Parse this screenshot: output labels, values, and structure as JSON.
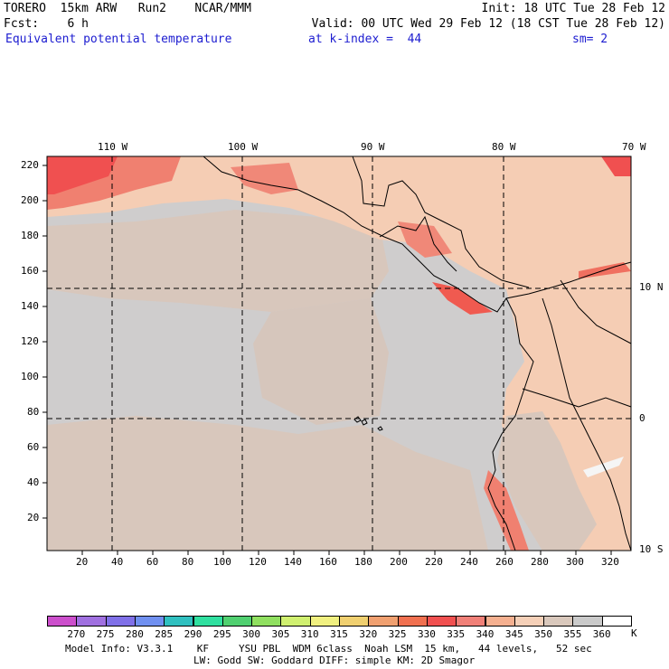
{
  "header": {
    "line1_left": "TORERO  15km ARW   Run2    NCAR/MMM",
    "line1_right": "Init: 18 UTC Tue 28 Feb 12",
    "line2_left": "Fcst:    6 h",
    "line2_right": "Valid: 00 UTC Wed 29 Feb 12 (18 CST Tue 28 Feb 12)",
    "field_name": "Equivalent potential temperature",
    "level": "at k-index =  44",
    "smoothing": "sm= 2"
  },
  "map": {
    "top_lon_labels": [
      "110 W",
      "100 W",
      "90 W",
      "80 W",
      "70 W"
    ],
    "right_lat_labels": [
      "10 N",
      "0",
      "10 S"
    ],
    "left_ticks": [
      "20",
      "40",
      "60",
      "80",
      "100",
      "120",
      "140",
      "160",
      "180",
      "200",
      "220"
    ],
    "bottom_ticks": [
      "20",
      "40",
      "60",
      "80",
      "100",
      "120",
      "140",
      "160",
      "180",
      "200",
      "220",
      "240",
      "260",
      "280",
      "300",
      "320"
    ]
  },
  "colorbar": {
    "labels": [
      "270",
      "275",
      "280",
      "285",
      "290",
      "295",
      "300",
      "305",
      "310",
      "315",
      "320",
      "325",
      "330",
      "335",
      "340",
      "345",
      "350",
      "355",
      "360"
    ],
    "unit": "K",
    "colors": [
      "#cc4fcc",
      "#a070e0",
      "#8070e8",
      "#7090f0",
      "#30c0c0",
      "#30e0a0",
      "#50d070",
      "#90e060",
      "#d0f070",
      "#f0f080",
      "#f0d070",
      "#f0a070",
      "#f07050",
      "#f05050",
      "#f08078",
      "#f5b090",
      "#f5d0b8",
      "#d9c8bc",
      "#cacaca",
      "#ffffff"
    ]
  },
  "footer": {
    "line1": "Model Info: V3.3.1    KF     YSU PBL  WDM 6class  Noah LSM  15 km,   44 levels,   52 sec",
    "line2": "LW: Godd SW: Goddard DIFF: simple KM: 2D Smagor"
  }
}
